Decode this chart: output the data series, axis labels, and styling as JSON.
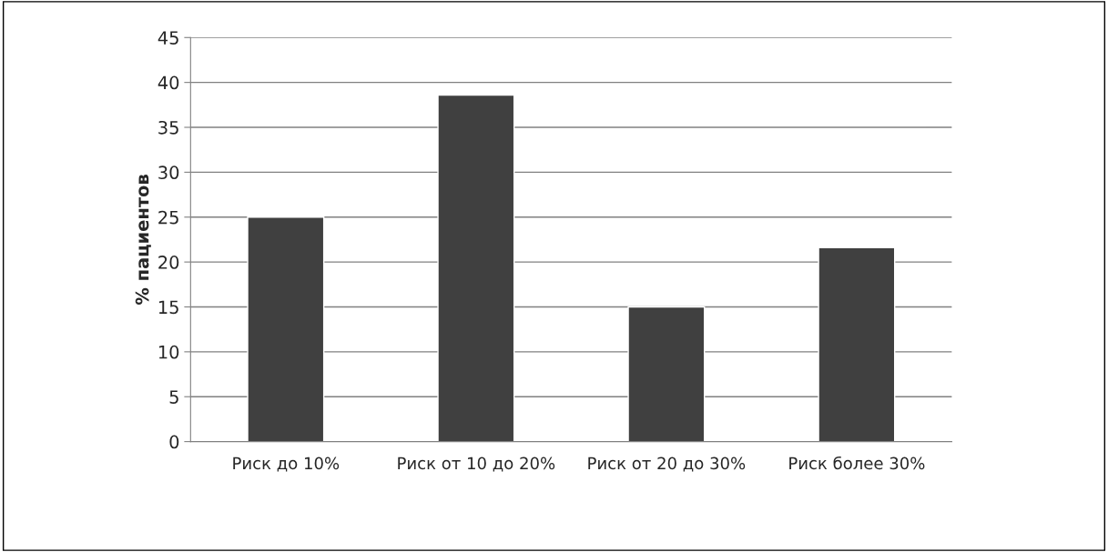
{
  "chart_data": {
    "type": "bar",
    "ylabel": "% пациентов",
    "categories": [
      "Риск до 10%",
      "Риск от 10 до 20%",
      "Риск от 20 до 30%",
      "Риск более 30%"
    ],
    "values": [
      25,
      38.6,
      15,
      21.6
    ],
    "color": "#404040",
    "ylim": [
      0,
      45
    ],
    "yticks": [
      0,
      5,
      10,
      15,
      20,
      25,
      30,
      35,
      40,
      45
    ],
    "grid": "y",
    "legend": false
  }
}
